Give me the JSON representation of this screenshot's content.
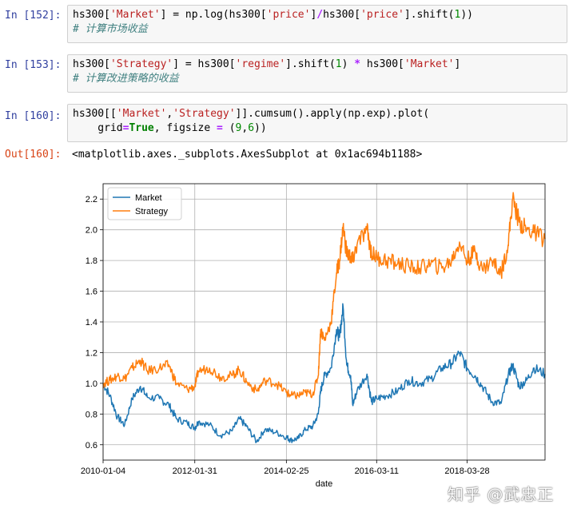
{
  "cells": [
    {
      "prompt": "In [152]:",
      "code_lines": [
        [
          {
            "t": "hs300[",
            "c": ""
          },
          {
            "t": "'Market'",
            "c": "str"
          },
          {
            "t": "] = np.log(hs300[",
            "c": ""
          },
          {
            "t": "'price'",
            "c": "str"
          },
          {
            "t": "]",
            "c": ""
          },
          {
            "t": "/",
            "c": "op"
          },
          {
            "t": "hs300[",
            "c": ""
          },
          {
            "t": "'price'",
            "c": "str"
          },
          {
            "t": "].shift(",
            "c": ""
          },
          {
            "t": "1",
            "c": "num"
          },
          {
            "t": "))",
            "c": ""
          }
        ],
        [
          {
            "t": "# 计算市场收益",
            "c": "comment"
          }
        ]
      ]
    },
    {
      "prompt": "In [153]:",
      "code_lines": [
        [
          {
            "t": "hs300[",
            "c": ""
          },
          {
            "t": "'Strategy'",
            "c": "str"
          },
          {
            "t": "] = hs300[",
            "c": ""
          },
          {
            "t": "'regime'",
            "c": "str"
          },
          {
            "t": "].shift(",
            "c": ""
          },
          {
            "t": "1",
            "c": "num"
          },
          {
            "t": ") ",
            "c": ""
          },
          {
            "t": "*",
            "c": "op"
          },
          {
            "t": " hs300[",
            "c": ""
          },
          {
            "t": "'Market'",
            "c": "str"
          },
          {
            "t": "]",
            "c": ""
          }
        ],
        [
          {
            "t": "# 计算改进策略的收益",
            "c": "comment"
          }
        ]
      ]
    },
    {
      "prompt": "In [160]:",
      "code_lines": [
        [
          {
            "t": "hs300[[",
            "c": ""
          },
          {
            "t": "'Market'",
            "c": "str"
          },
          {
            "t": ",",
            "c": ""
          },
          {
            "t": "'Strategy'",
            "c": "str"
          },
          {
            "t": "]].cumsum().apply(np.exp).plot(",
            "c": ""
          }
        ],
        [
          {
            "t": "    grid",
            "c": ""
          },
          {
            "t": "=",
            "c": "op"
          },
          {
            "t": "True",
            "c": "kw"
          },
          {
            "t": ", figsize ",
            "c": ""
          },
          {
            "t": "=",
            "c": "op"
          },
          {
            "t": " (",
            "c": ""
          },
          {
            "t": "9",
            "c": "num"
          },
          {
            "t": ",",
            "c": ""
          },
          {
            "t": "6",
            "c": "num"
          },
          {
            "t": "))",
            "c": ""
          }
        ]
      ]
    }
  ],
  "output": {
    "prompt": "Out[160]:",
    "text": "<matplotlib.axes._subplots.AxesSubplot at 0x1ac694b1188>"
  },
  "watermark": "知乎 @武忠正",
  "chart_data": {
    "type": "line",
    "xlabel": "date",
    "ylabel": "",
    "xlim": [
      "2010-01-04",
      "2019-12-31"
    ],
    "ylim": [
      0.5,
      2.3
    ],
    "grid": true,
    "legend_position": "top-left",
    "x_ticks": [
      "2010-01-04",
      "2012-01-31",
      "2014-02-25",
      "2016-03-11",
      "2018-03-28"
    ],
    "y_ticks": [
      0.6,
      0.8,
      1.0,
      1.2,
      1.4,
      1.6,
      1.8,
      2.0,
      2.2
    ],
    "series": [
      {
        "name": "Market",
        "color": "#1f77b4",
        "x": [
          "2010-01-04",
          "2010-03-01",
          "2010-05-03",
          "2010-07-01",
          "2010-09-01",
          "2010-11-08",
          "2011-01-04",
          "2011-04-15",
          "2011-07-01",
          "2011-09-01",
          "2011-12-01",
          "2012-01-31",
          "2012-03-01",
          "2012-06-01",
          "2012-09-01",
          "2012-12-03",
          "2013-02-01",
          "2013-04-01",
          "2013-06-25",
          "2013-09-01",
          "2013-12-01",
          "2014-02-25",
          "2014-04-01",
          "2014-06-01",
          "2014-08-01",
          "2014-10-01",
          "2014-11-15",
          "2014-12-05",
          "2015-01-05",
          "2015-03-01",
          "2015-04-15",
          "2015-05-10",
          "2015-06-08",
          "2015-07-08",
          "2015-08-10",
          "2015-08-26",
          "2015-10-01",
          "2015-12-22",
          "2016-01-28",
          "2016-03-11",
          "2016-06-01",
          "2016-09-01",
          "2016-12-01",
          "2017-03-01",
          "2017-06-01",
          "2017-09-01",
          "2017-11-20",
          "2018-01-24",
          "2018-03-28",
          "2018-06-01",
          "2018-08-01",
          "2018-10-18",
          "2019-01-03",
          "2019-03-01",
          "2019-04-08",
          "2019-06-01",
          "2019-08-01",
          "2019-10-01",
          "2019-12-31"
        ],
        "values": [
          1.0,
          0.92,
          0.78,
          0.73,
          0.9,
          0.98,
          0.91,
          0.9,
          0.86,
          0.77,
          0.74,
          0.71,
          0.75,
          0.73,
          0.66,
          0.69,
          0.77,
          0.72,
          0.62,
          0.7,
          0.68,
          0.65,
          0.63,
          0.64,
          0.7,
          0.72,
          0.8,
          0.95,
          1.05,
          1.1,
          1.35,
          1.3,
          1.5,
          1.12,
          1.05,
          0.86,
          0.95,
          1.06,
          0.88,
          0.9,
          0.92,
          0.95,
          1.02,
          1.0,
          1.03,
          1.1,
          1.13,
          1.2,
          1.1,
          1.05,
          0.98,
          0.88,
          0.87,
          1.05,
          1.12,
          0.98,
          1.02,
          1.1,
          1.06
        ]
      },
      {
        "name": "Strategy",
        "color": "#ff7f0e",
        "x": [
          "2010-01-04",
          "2010-03-01",
          "2010-05-03",
          "2010-07-01",
          "2010-09-01",
          "2010-11-08",
          "2011-01-04",
          "2011-04-15",
          "2011-07-01",
          "2011-09-01",
          "2011-12-01",
          "2012-01-31",
          "2012-03-01",
          "2012-06-01",
          "2012-09-01",
          "2012-12-03",
          "2013-02-01",
          "2013-04-01",
          "2013-06-25",
          "2013-09-01",
          "2013-12-01",
          "2014-02-25",
          "2014-04-01",
          "2014-06-01",
          "2014-08-01",
          "2014-10-01",
          "2014-11-15",
          "2014-12-05",
          "2015-01-05",
          "2015-03-01",
          "2015-04-15",
          "2015-05-10",
          "2015-06-08",
          "2015-07-08",
          "2015-08-10",
          "2015-08-26",
          "2015-10-01",
          "2015-12-22",
          "2016-01-28",
          "2016-03-11",
          "2016-06-01",
          "2016-09-01",
          "2016-12-01",
          "2017-03-01",
          "2017-06-01",
          "2017-09-01",
          "2017-11-20",
          "2018-01-24",
          "2018-03-28",
          "2018-06-01",
          "2018-08-01",
          "2018-10-18",
          "2019-01-03",
          "2019-03-01",
          "2019-04-08",
          "2019-06-01",
          "2019-08-01",
          "2019-10-01",
          "2019-12-31"
        ],
        "values": [
          1.0,
          1.02,
          1.05,
          1.03,
          1.1,
          1.15,
          1.08,
          1.1,
          1.12,
          1.0,
          0.96,
          0.98,
          1.08,
          1.1,
          1.04,
          1.05,
          1.09,
          1.01,
          0.95,
          1.02,
          1.0,
          0.94,
          0.92,
          0.92,
          0.94,
          0.93,
          1.05,
          1.35,
          1.28,
          1.4,
          1.72,
          1.8,
          2.02,
          1.85,
          1.82,
          1.8,
          1.9,
          2.0,
          1.85,
          1.82,
          1.8,
          1.78,
          1.76,
          1.75,
          1.78,
          1.75,
          1.8,
          1.92,
          1.8,
          1.86,
          1.74,
          1.8,
          1.72,
          1.9,
          2.2,
          2.05,
          2.0,
          1.98,
          1.94
        ]
      }
    ]
  }
}
